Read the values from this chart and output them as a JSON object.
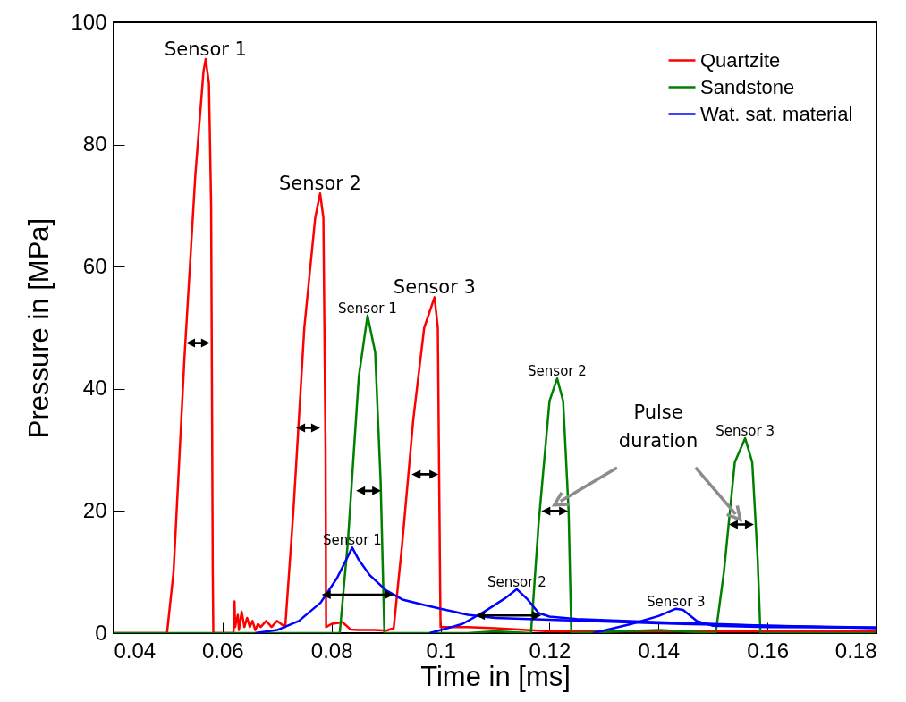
{
  "chart_data": {
    "type": "line",
    "xlabel": "Time in [ms]",
    "ylabel": "Pressure in [MPa]",
    "xlim": [
      0.04,
      0.18
    ],
    "xticks": [
      0.04,
      0.06,
      0.08,
      0.1,
      0.12,
      0.14,
      0.16,
      0.18
    ],
    "ylim": [
      0,
      100
    ],
    "yticks": [
      0,
      20,
      40,
      60,
      80,
      100
    ],
    "grid": false,
    "legend": "top right",
    "marker": "none",
    "line_style": "solid",
    "series": [
      {
        "name": "Quartzite",
        "color": "#ff0000",
        "x": [
          0.04,
          0.049,
          0.0498,
          0.051,
          0.053,
          0.055,
          0.0565,
          0.0569,
          0.0575,
          0.0579,
          0.0582,
          0.0583,
          0.062,
          0.0622,
          0.0623,
          0.0628,
          0.063,
          0.0635,
          0.064,
          0.0645,
          0.065,
          0.0655,
          0.066,
          0.0665,
          0.067,
          0.068,
          0.069,
          0.07,
          0.0715,
          0.073,
          0.075,
          0.077,
          0.0779,
          0.0785,
          0.0789,
          0.079,
          0.08,
          0.082,
          0.0835,
          0.085,
          0.088,
          0.09,
          0.0914,
          0.093,
          0.095,
          0.097,
          0.0989,
          0.0995,
          0.0999,
          0.1,
          0.105,
          0.11,
          0.12,
          0.13,
          0.14,
          0.15,
          0.16,
          0.17,
          0.18
        ],
        "values": [
          0,
          0,
          0,
          10,
          45,
          75,
          92,
          94,
          90,
          70,
          10,
          0,
          0,
          5.2,
          1,
          3,
          0.5,
          3.5,
          1,
          2.5,
          1,
          2,
          0.5,
          1.5,
          1,
          2,
          1,
          2,
          1,
          20,
          50,
          68,
          72,
          68,
          30,
          1,
          1.5,
          1.8,
          0.6,
          0.5,
          0.5,
          0.4,
          0.8,
          15,
          35,
          50,
          55,
          50,
          10,
          1,
          1,
          0.8,
          0.3,
          0.3,
          0.3,
          0.3,
          0.3,
          0.3,
          0.3
        ]
      },
      {
        "name": "Sandstone",
        "color": "#008000",
        "x": [
          0.04,
          0.0815,
          0.083,
          0.085,
          0.0866,
          0.088,
          0.089,
          0.0897,
          0.105,
          0.11,
          0.1166,
          0.118,
          0.12,
          0.1214,
          0.1225,
          0.1235,
          0.124,
          0.14,
          0.1505,
          0.152,
          0.154,
          0.1559,
          0.1572,
          0.1582,
          0.1587,
          0.18
        ],
        "values": [
          0,
          0,
          15,
          42,
          52,
          46,
          25,
          0,
          0,
          0.3,
          0,
          18,
          38,
          41.7,
          38,
          20,
          0,
          0.5,
          0,
          10,
          28,
          31.9,
          28,
          12,
          0,
          0
        ]
      },
      {
        "name": "Wat. sat. material",
        "color": "#0000ff",
        "x": [
          0.066,
          0.07,
          0.074,
          0.078,
          0.081,
          0.0838,
          0.085,
          0.087,
          0.09,
          0.093,
          0.097,
          0.1,
          0.105,
          0.11,
          0.12,
          0.14,
          0.16,
          0.18
        ],
        "values": [
          0,
          0.5,
          2,
          5,
          9,
          14,
          12,
          9.5,
          7,
          5.5,
          4.6,
          4,
          3,
          2.5,
          2.2,
          1.6,
          1.2,
          0.9
        ]
      },
      {
        "color": "#0000ff",
        "x": [
          0.098,
          0.104,
          0.108,
          0.112,
          0.114,
          0.116,
          0.118,
          0.12,
          0.125,
          0.14,
          0.16,
          0.18
        ],
        "values": [
          0,
          1.5,
          3.5,
          5.8,
          7.2,
          5.5,
          3.3,
          2.7,
          2.3,
          1.8,
          1.2,
          0.8
        ]
      },
      {
        "color": "#0000ff",
        "x": [
          0.128,
          0.135,
          0.14,
          0.1432,
          0.1445,
          0.147,
          0.15,
          0.16,
          0.18
        ],
        "values": [
          0,
          1.5,
          2.8,
          4,
          3.8,
          2,
          1.2,
          1,
          0.9
        ]
      }
    ],
    "annotations": [
      {
        "text": "Sensor 1",
        "x": 0.0569,
        "y": 94
      },
      {
        "text": "Sensor 2",
        "x": 0.0779,
        "y": 72
      },
      {
        "text": "Sensor 3",
        "x": 0.0989,
        "y": 55
      },
      {
        "text": "Sensor 1",
        "x": 0.0866,
        "y": 52
      },
      {
        "text": "Sensor 2",
        "x": 0.1214,
        "y": 41.7
      },
      {
        "text": "Sensor 3",
        "x": 0.1559,
        "y": 31.9
      },
      {
        "text": "Sensor 1",
        "x": 0.0838,
        "y": 14
      },
      {
        "text": "Sensor 2",
        "x": 0.114,
        "y": 7.2
      },
      {
        "text": "Sensor 3",
        "x": 0.1432,
        "y": 4
      },
      "Pulse duration"
    ]
  }
}
